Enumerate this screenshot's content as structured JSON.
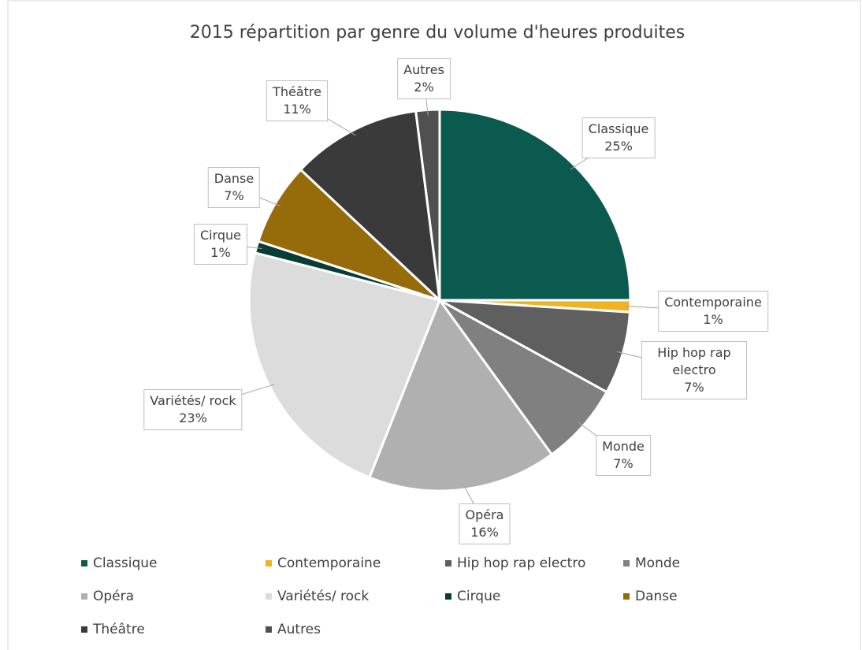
{
  "chart_data": {
    "type": "pie",
    "title": "2015 répartition par genre du volume d'heures produites",
    "categories": [
      "Classique",
      "Contemporaine",
      "Hip hop rap electro",
      "Monde",
      "Opéra",
      "Variétés/ rock",
      "Cirque",
      "Danse",
      "Théâtre",
      "Autres"
    ],
    "values": [
      25,
      1,
      7,
      7,
      16,
      23,
      1,
      7,
      11,
      2
    ],
    "value_labels": [
      "25%",
      "1%",
      "7%",
      "7%",
      "16%",
      "23%",
      "1%",
      "7%",
      "11%",
      "2%"
    ],
    "colors": [
      "#0b5a4f",
      "#f0b323",
      "#5f5f5f",
      "#808080",
      "#b0b0b0",
      "#dcdcdc",
      "#083d36",
      "#966b0a",
      "#3a3a3a",
      "#505050"
    ],
    "legend": "bottom"
  }
}
